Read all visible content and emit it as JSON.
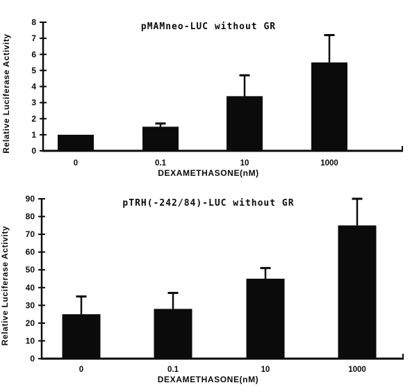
{
  "figure": {
    "background": "#ffffff",
    "ink": "#0b0b0b",
    "description": "Two stacked bar charts of relative luciferase activity versus dexamethasone dose"
  },
  "chart_data": [
    {
      "type": "bar",
      "title": "pMAMneo-LUC without GR",
      "xlabel": "DEXAMETHASONE(nM)",
      "ylabel": "Relative Luciferase Activity",
      "categories": [
        "0",
        "0.1",
        "10",
        "1000"
      ],
      "values": [
        1.0,
        1.5,
        3.4,
        5.5
      ],
      "errors_plus": [
        0,
        0.2,
        1.3,
        1.7
      ],
      "error_caps_at": [
        1.0,
        1.7,
        4.7,
        7.2
      ],
      "ylim": [
        0,
        8
      ],
      "yticks": [
        0,
        1,
        2,
        3,
        4,
        5,
        6,
        7,
        8
      ],
      "bar_color": "#0b0b0b",
      "grid": false,
      "legend": false
    },
    {
      "type": "bar",
      "title": "pTRH(-242/84)-LUC without GR",
      "xlabel": "DEXAMETHASONE(nM)",
      "ylabel": "Relative Luciferase Activity",
      "categories": [
        "0",
        "0.1",
        "10",
        "1000"
      ],
      "values": [
        25,
        28,
        45,
        75
      ],
      "errors_plus": [
        10,
        9,
        6,
        15
      ],
      "error_caps_at": [
        35,
        37,
        51,
        90
      ],
      "ylim": [
        0,
        90
      ],
      "yticks": [
        0,
        10,
        20,
        30,
        40,
        50,
        60,
        70,
        80,
        90
      ],
      "bar_color": "#0b0b0b",
      "grid": false,
      "legend": false
    }
  ]
}
